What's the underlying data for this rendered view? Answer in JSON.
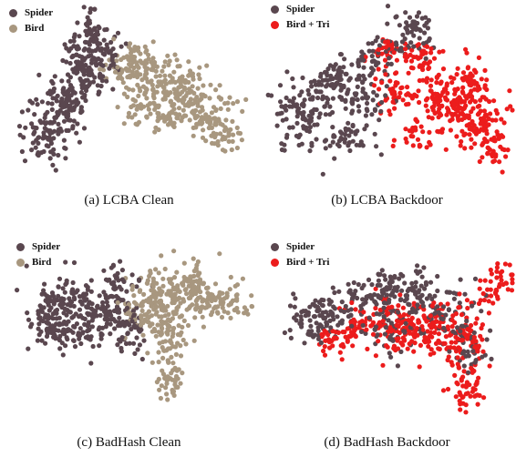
{
  "colors": {
    "spider": "#5a474f",
    "bird_clean": "#a8977f",
    "bird_trigger": "#ec1c1c"
  },
  "chart_data": [
    {
      "type": "scatter",
      "caption": "(a)  LCBA Clean",
      "legend": [
        "Spider",
        "Bird"
      ],
      "series": [
        {
          "name": "Spider",
          "color_key": "spider",
          "points": [],
          "count": 380
        },
        {
          "name": "Bird",
          "color_key": "bird_clean",
          "points": [],
          "count": 420
        }
      ]
    },
    {
      "type": "scatter",
      "caption": "(b)  LCBA Backdoor",
      "legend": [
        "Spider",
        "Bird + Tri"
      ],
      "series": [
        {
          "name": "Spider",
          "color_key": "spider",
          "points": [],
          "count": 380
        },
        {
          "name": "Bird + Tri",
          "color_key": "bird_trigger",
          "points": [],
          "count": 420
        }
      ]
    },
    {
      "type": "scatter",
      "caption": "(c)  BadHash Clean",
      "legend": [
        "Spider",
        "Bird"
      ],
      "series": [
        {
          "name": "Spider",
          "color_key": "spider",
          "points": [],
          "count": 380
        },
        {
          "name": "Bird",
          "color_key": "bird_clean",
          "points": [],
          "count": 420
        }
      ]
    },
    {
      "type": "scatter",
      "caption": "(d)  BadHash Backdoor",
      "legend": [
        "Spider",
        "Bird + Tri"
      ],
      "series": [
        {
          "name": "Spider",
          "color_key": "spider",
          "points": [],
          "count": 380
        },
        {
          "name": "Bird + Tri",
          "color_key": "bird_trigger",
          "points": [],
          "count": 420
        }
      ]
    }
  ]
}
